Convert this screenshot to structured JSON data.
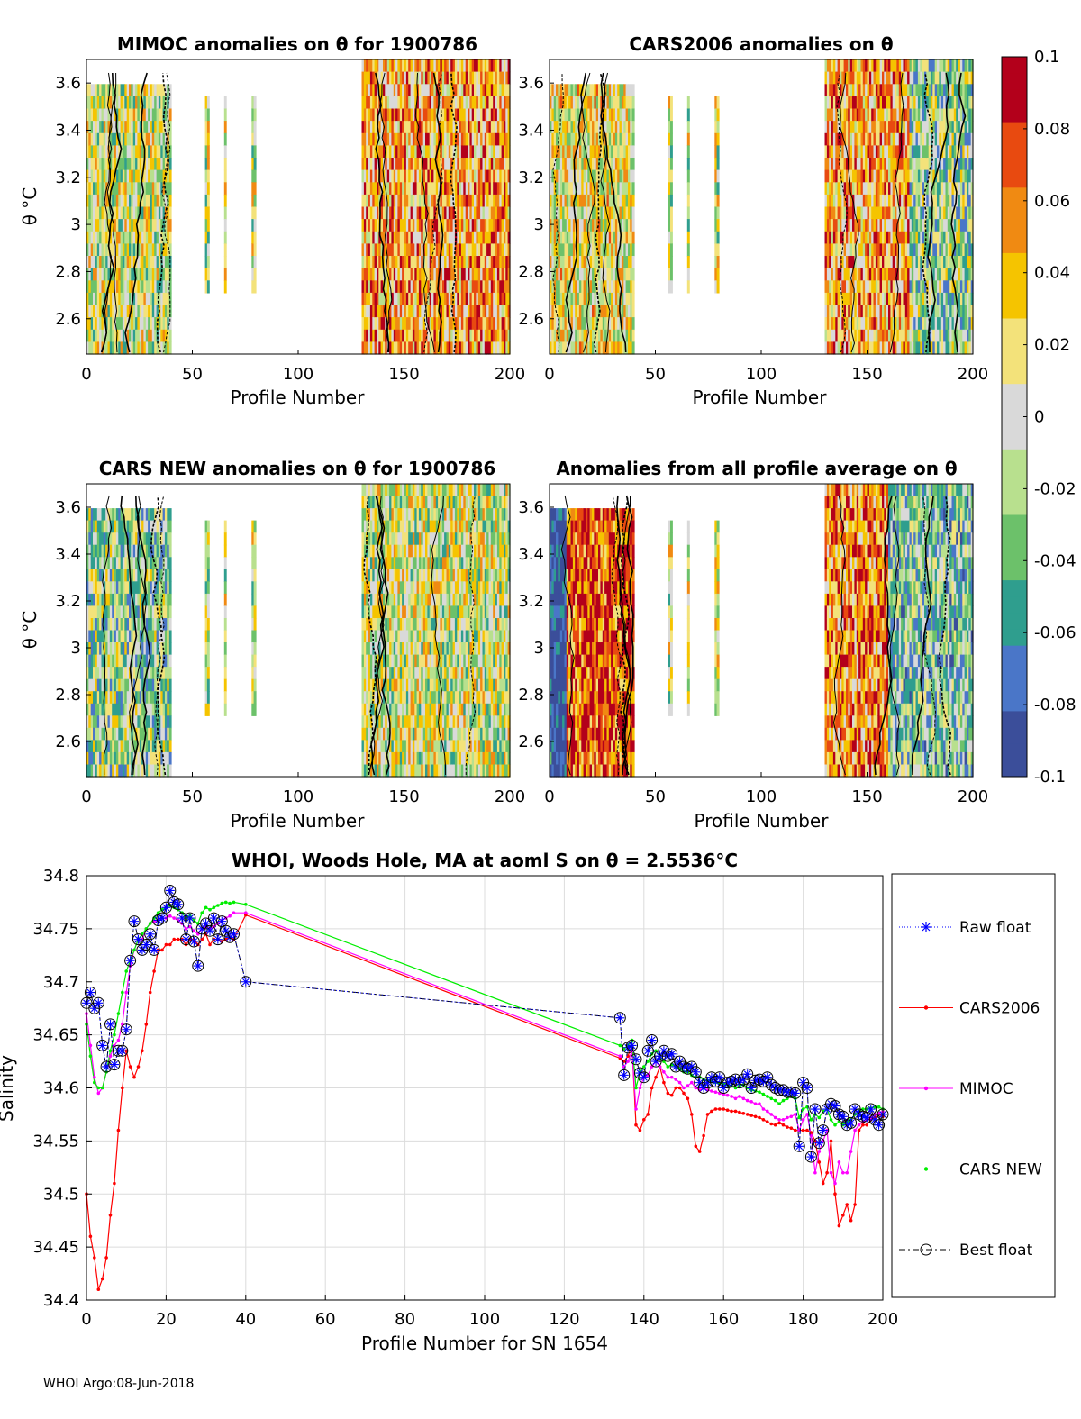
{
  "chart_data": [
    {
      "type": "heatmap",
      "title": "MIMOC anomalies on θ  for 1900786",
      "xlabel": "Profile Number",
      "ylabel": "θ °C",
      "xlim": [
        0,
        200
      ],
      "ylim": [
        2.45,
        3.7
      ],
      "xticks": [
        "0",
        "50",
        "100",
        "150",
        "200"
      ],
      "yticks": [
        "2.6",
        "2.8",
        "3",
        "3.2",
        "3.4",
        "3.6"
      ],
      "profile_ranges": [
        [
          0,
          40
        ],
        [
          56,
          58
        ],
        [
          65,
          66
        ],
        [
          78,
          80
        ],
        [
          130,
          200
        ]
      ]
    },
    {
      "type": "heatmap",
      "title": "CARS2006 anomalies on θ",
      "xlabel": "Profile Number",
      "xlim": [
        0,
        200
      ],
      "ylim": [
        2.45,
        3.7
      ],
      "xticks": [
        "0",
        "50",
        "100",
        "150",
        "200"
      ],
      "yticks": [
        "2.6",
        "2.8",
        "3",
        "3.2",
        "3.4",
        "3.6"
      ],
      "profile_ranges": [
        [
          0,
          40
        ],
        [
          56,
          58
        ],
        [
          65,
          66
        ],
        [
          78,
          80
        ],
        [
          130,
          200
        ]
      ]
    },
    {
      "type": "heatmap",
      "title": "CARS NEW anomalies on θ for 1900786",
      "xlabel": "Profile Number",
      "ylabel": "θ °C",
      "xlim": [
        0,
        200
      ],
      "ylim": [
        2.45,
        3.7
      ],
      "xticks": [
        "0",
        "50",
        "100",
        "150",
        "200"
      ],
      "yticks": [
        "2.6",
        "2.8",
        "3",
        "3.2",
        "3.4",
        "3.6"
      ],
      "profile_ranges": [
        [
          0,
          40
        ],
        [
          56,
          58
        ],
        [
          65,
          66
        ],
        [
          78,
          80
        ],
        [
          130,
          200
        ]
      ]
    },
    {
      "type": "heatmap",
      "title": "Anomalies from all profile average on θ",
      "xlabel": "Profile Number",
      "xlim": [
        0,
        200
      ],
      "ylim": [
        2.45,
        3.7
      ],
      "xticks": [
        "0",
        "50",
        "100",
        "150",
        "200"
      ],
      "yticks": [
        "2.6",
        "2.8",
        "3",
        "3.2",
        "3.4",
        "3.6"
      ],
      "profile_ranges": [
        [
          0,
          40
        ],
        [
          56,
          58
        ],
        [
          65,
          66
        ],
        [
          78,
          80
        ],
        [
          130,
          200
        ]
      ]
    },
    {
      "type": "colorbar",
      "range": [
        -0.1,
        0.1
      ],
      "ticks": [
        "0.1",
        "0.08",
        "0.06",
        "0.04",
        "0.02",
        "0",
        "-0.02",
        "-0.04",
        "-0.06",
        "-0.08",
        "-0.1"
      ],
      "colors": [
        "#3b4e9a",
        "#4a76c8",
        "#2f9e8e",
        "#6cc16a",
        "#b8e08e",
        "#d9d9d9",
        "#f3e27a",
        "#f5c400",
        "#f08a12",
        "#e84a10",
        "#b3001b"
      ]
    },
    {
      "type": "line",
      "title": "WHOI, Woods Hole, MA at aoml S on θ = 2.5536°C",
      "xlabel": "Profile Number for SN 1654",
      "ylabel": "Salinity",
      "xlim": [
        0,
        200
      ],
      "ylim": [
        34.4,
        34.8
      ],
      "xticks": [
        "0",
        "20",
        "40",
        "60",
        "80",
        "100",
        "120",
        "140",
        "160",
        "180",
        "200"
      ],
      "yticks": [
        "34.8",
        "34.75",
        "34.7",
        "34.65",
        "34.6",
        "34.55",
        "34.5",
        "34.45",
        "34.4"
      ],
      "x": [
        0,
        1,
        2,
        3,
        4,
        5,
        6,
        7,
        8,
        9,
        10,
        11,
        12,
        13,
        14,
        15,
        16,
        17,
        18,
        19,
        20,
        21,
        22,
        23,
        24,
        25,
        26,
        27,
        28,
        29,
        30,
        31,
        32,
        33,
        34,
        35,
        36,
        37,
        40,
        134,
        135,
        136,
        137,
        138,
        139,
        140,
        141,
        142,
        143,
        144,
        145,
        146,
        147,
        148,
        149,
        150,
        151,
        152,
        153,
        154,
        155,
        156,
        157,
        158,
        159,
        160,
        161,
        162,
        163,
        164,
        165,
        166,
        167,
        168,
        169,
        170,
        171,
        172,
        173,
        174,
        175,
        176,
        177,
        178,
        179,
        180,
        181,
        182,
        183,
        184,
        185,
        186,
        187,
        188,
        189,
        190,
        191,
        192,
        193,
        194,
        195,
        196,
        197,
        198,
        199,
        200
      ],
      "series": [
        {
          "name": "Raw float",
          "color": "#0000ff",
          "values": [
            34.68,
            34.69,
            34.675,
            34.68,
            34.64,
            34.62,
            34.66,
            34.622,
            34.635,
            34.635,
            34.655,
            34.72,
            34.757,
            34.74,
            34.73,
            34.735,
            34.745,
            34.73,
            34.758,
            34.76,
            34.77,
            34.786,
            34.775,
            34.773,
            34.76,
            34.74,
            34.76,
            34.738,
            34.715,
            34.75,
            34.755,
            34.748,
            34.76,
            34.74,
            34.757,
            34.748,
            34.742,
            34.745,
            34.7,
            34.666,
            34.612,
            34.638,
            34.64,
            34.627,
            34.614,
            34.61,
            34.635,
            34.645,
            34.625,
            34.63,
            34.635,
            34.63,
            34.632,
            34.62,
            34.625,
            34.62,
            34.618,
            34.62,
            34.615,
            34.605,
            34.6,
            34.605,
            34.61,
            34.606,
            34.61,
            34.6,
            34.605,
            34.606,
            34.608,
            34.605,
            34.608,
            34.613,
            34.6,
            34.607,
            34.608,
            34.606,
            34.61,
            34.603,
            34.6,
            34.598,
            34.598,
            34.596,
            34.596,
            34.595,
            34.545,
            34.605,
            34.6,
            34.535,
            34.58,
            34.548,
            34.56,
            34.58,
            34.585,
            34.583,
            34.575,
            34.573,
            34.565,
            34.567,
            34.58,
            34.575,
            34.573,
            34.572,
            34.58,
            34.57,
            34.565,
            34.575
          ],
          "best": [
            34.68,
            34.69,
            34.675,
            34.68,
            34.64,
            34.62,
            34.66,
            34.622,
            34.635,
            34.635,
            34.655,
            34.72,
            34.757,
            34.74,
            34.73,
            34.735,
            34.745,
            34.73,
            34.758,
            34.76,
            34.77,
            34.786,
            34.775,
            34.773,
            34.76,
            34.74,
            34.76,
            34.738,
            34.715,
            34.75,
            34.755,
            34.748,
            34.76,
            34.74,
            34.757,
            34.748,
            34.742,
            34.745,
            34.7,
            34.666,
            34.612,
            34.638,
            34.64,
            34.627,
            34.614,
            34.61,
            34.635,
            34.645,
            34.625,
            34.63,
            34.635,
            34.63,
            34.632,
            34.62,
            34.625,
            34.62,
            34.618,
            34.62,
            34.615,
            34.605,
            34.6,
            34.605,
            34.61,
            34.606,
            34.61,
            34.6,
            34.605,
            34.606,
            34.608,
            34.605,
            34.608,
            34.613,
            34.6,
            34.607,
            34.608,
            34.606,
            34.61,
            34.603,
            34.6,
            34.598,
            34.598,
            34.596,
            34.596,
            34.595,
            34.545,
            34.605,
            34.6,
            34.535,
            34.58,
            34.548,
            34.56,
            34.58,
            34.585,
            34.583,
            34.575,
            34.573,
            34.565,
            34.567,
            34.58,
            34.575,
            34.573,
            34.572,
            34.58,
            34.57,
            34.565,
            34.575
          ]
        },
        {
          "name": "CARS2006",
          "color": "#ff0000",
          "values": [
            34.5,
            34.46,
            34.44,
            34.41,
            34.42,
            34.44,
            34.48,
            34.51,
            34.56,
            34.6,
            34.635,
            34.62,
            34.61,
            34.62,
            34.635,
            34.66,
            34.69,
            34.71,
            34.73,
            34.73,
            34.735,
            34.735,
            34.74,
            34.74,
            34.74,
            34.735,
            34.74,
            34.74,
            34.735,
            34.74,
            34.745,
            34.735,
            34.74,
            34.74,
            34.738,
            34.74,
            34.742,
            34.74,
            34.763,
            34.628,
            34.625,
            34.63,
            34.64,
            34.565,
            34.56,
            34.57,
            34.575,
            34.6,
            34.61,
            34.62,
            34.605,
            34.595,
            34.593,
            34.6,
            34.6,
            34.595,
            34.59,
            34.575,
            34.545,
            34.54,
            34.555,
            34.575,
            34.578,
            34.58,
            34.58,
            34.58,
            34.579,
            34.578,
            34.578,
            34.577,
            34.576,
            34.575,
            34.574,
            34.573,
            34.572,
            34.57,
            34.568,
            34.566,
            34.565,
            34.567,
            34.565,
            34.563,
            34.562,
            34.56,
            34.56,
            34.56,
            34.56,
            34.558,
            34.55,
            34.53,
            34.51,
            34.52,
            34.55,
            34.5,
            34.47,
            34.48,
            34.49,
            34.475,
            34.49,
            34.56,
            34.565,
            34.565,
            34.57,
            34.572,
            34.575,
            34.573
          ],
          "raw_points": true
        },
        {
          "name": "MIMOC",
          "color": "#ff00ff",
          "values": [
            34.67,
            34.64,
            34.61,
            34.595,
            34.6,
            34.615,
            34.63,
            34.64,
            34.645,
            34.66,
            34.69,
            34.715,
            34.73,
            34.74,
            34.74,
            34.75,
            34.755,
            34.757,
            34.758,
            34.76,
            34.76,
            34.762,
            34.76,
            34.758,
            34.755,
            34.75,
            34.752,
            34.748,
            34.745,
            34.75,
            34.752,
            34.75,
            34.752,
            34.755,
            34.758,
            34.76,
            34.762,
            34.765,
            34.765,
            34.63,
            34.62,
            34.625,
            34.635,
            34.58,
            34.6,
            34.61,
            34.612,
            34.62,
            34.625,
            34.62,
            34.615,
            34.61,
            34.61,
            34.608,
            34.605,
            34.6,
            34.602,
            34.605,
            34.6,
            34.598,
            34.6,
            34.598,
            34.597,
            34.596,
            34.595,
            34.594,
            34.593,
            34.592,
            34.59,
            34.592,
            34.59,
            34.588,
            34.587,
            34.585,
            34.585,
            34.58,
            34.578,
            34.575,
            34.572,
            34.57,
            34.57,
            34.572,
            34.573,
            34.575,
            34.56,
            34.57,
            34.575,
            34.555,
            34.52,
            34.54,
            34.55,
            34.56,
            34.52,
            34.51,
            34.53,
            34.52,
            34.52,
            34.54,
            34.56,
            34.565,
            34.568,
            34.57,
            34.572,
            34.575,
            34.576,
            34.578
          ],
          "raw_points": true
        },
        {
          "name": "CARS NEW",
          "color": "#00ee00",
          "values": [
            34.66,
            34.63,
            34.605,
            34.6,
            34.6,
            34.615,
            34.635,
            34.65,
            34.67,
            34.69,
            34.71,
            34.72,
            34.73,
            34.74,
            34.745,
            34.75,
            34.755,
            34.76,
            34.765,
            34.768,
            34.77,
            34.772,
            34.77,
            34.768,
            34.765,
            34.76,
            34.762,
            34.758,
            34.755,
            34.765,
            34.77,
            34.768,
            34.77,
            34.772,
            34.774,
            34.775,
            34.774,
            34.775,
            34.773,
            34.64,
            34.637,
            34.64,
            34.645,
            34.6,
            34.615,
            34.62,
            34.625,
            34.632,
            34.635,
            34.63,
            34.625,
            34.62,
            34.622,
            34.62,
            34.618,
            34.615,
            34.615,
            34.612,
            34.61,
            34.61,
            34.608,
            34.607,
            34.606,
            34.605,
            34.604,
            34.604,
            34.603,
            34.602,
            34.6,
            34.602,
            34.603,
            34.6,
            34.598,
            34.597,
            34.596,
            34.594,
            34.592,
            34.59,
            34.588,
            34.585,
            34.588,
            34.59,
            34.592,
            34.59,
            34.572,
            34.58,
            34.582,
            34.57,
            34.575,
            34.572,
            34.578,
            34.58,
            34.57,
            34.565,
            34.568,
            34.565,
            34.568,
            34.57,
            34.575,
            34.578,
            34.58,
            34.58,
            34.581,
            34.582,
            34.582,
            34.58
          ],
          "raw_points": true
        }
      ],
      "legend": [
        "Raw float",
        "CARS2006",
        "MIMOC",
        "CARS NEW",
        "Best float"
      ],
      "legend_position": "right"
    }
  ],
  "footer": "WHOI Argo:08-Jun-2018"
}
